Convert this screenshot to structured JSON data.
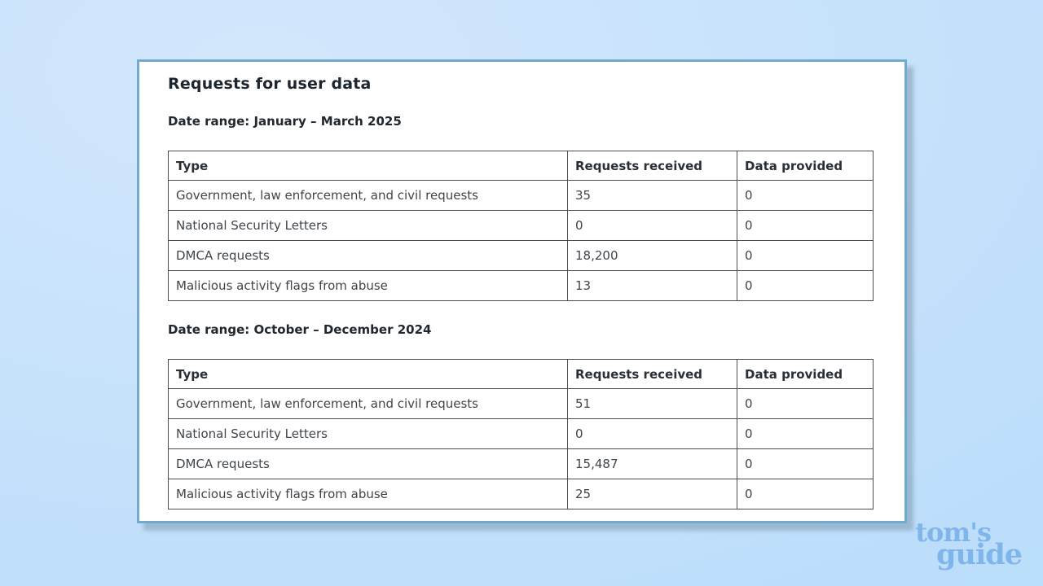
{
  "card": {
    "title": "Requests for user data",
    "sections": [
      {
        "date_label": "Date range: January – March 2025",
        "table": {
          "headers": [
            "Type",
            "Requests received",
            "Data provided"
          ],
          "rows": [
            [
              "Government, law enforcement, and civil requests",
              "35",
              "0"
            ],
            [
              "National Security Letters",
              "0",
              "0"
            ],
            [
              "DMCA requests",
              "18,200",
              "0"
            ],
            [
              "Malicious activity flags from abuse",
              "13",
              "0"
            ]
          ]
        }
      },
      {
        "date_label": "Date range: October – December 2024",
        "table": {
          "headers": [
            "Type",
            "Requests received",
            "Data provided"
          ],
          "rows": [
            [
              "Government, law enforcement, and civil requests",
              "51",
              "0"
            ],
            [
              "National Security Letters",
              "0",
              "0"
            ],
            [
              "DMCA requests",
              "15,487",
              "0"
            ],
            [
              "Malicious activity flags from abuse",
              "25",
              "0"
            ]
          ]
        }
      }
    ]
  },
  "logo": {
    "line1": "tom's",
    "line2": "guide",
    "color": "#7fb5ea"
  },
  "colors": {
    "background": "#c6e2fb",
    "card_border": "#72a9cd",
    "table_border": "#4d4d4d",
    "text_dark": "#1d262e",
    "logo_blue": "#7fb5ea"
  }
}
